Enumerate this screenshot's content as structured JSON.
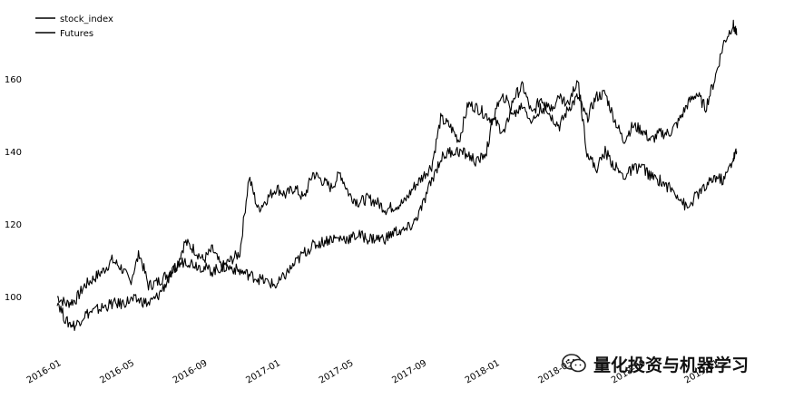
{
  "chart_data": {
    "type": "line",
    "title": "",
    "xlabel": "",
    "ylabel": "",
    "x_ticks": [
      "2016-01",
      "2016-05",
      "2016-09",
      "2017-01",
      "2017-05",
      "2017-09",
      "2018-01",
      "2018-05",
      "2018-09",
      "2019-01"
    ],
    "y_ticks": [
      100,
      120,
      140,
      160
    ],
    "ylim": [
      88,
      178
    ],
    "xlim": [
      0,
      38.5
    ],
    "legend": "top-left",
    "grid": false,
    "series": [
      {
        "name": "stock_index",
        "color": "#000000",
        "x": [
          0,
          0.5,
          1,
          1.5,
          2,
          2.5,
          3,
          3.5,
          4,
          4.5,
          5,
          5.5,
          6,
          6.5,
          7,
          7.5,
          8,
          8.5,
          9,
          9.5,
          10,
          10.5,
          11,
          11.5,
          12,
          12.5,
          13,
          13.5,
          14,
          14.5,
          15,
          15.5,
          16,
          16.5,
          17,
          17.5,
          18,
          18.5,
          19,
          19.5,
          20,
          20.5,
          21,
          21.5,
          22,
          22.5,
          23,
          23.5,
          24,
          24.5,
          25,
          25.5,
          26,
          26.5,
          27,
          27.5,
          28,
          28.5,
          29,
          29.5,
          30,
          30.5,
          31,
          31.5,
          32,
          32.5,
          33,
          33.5,
          34,
          34.5,
          35,
          35.5,
          36,
          36.5,
          37,
          37.2
        ],
        "values": [
          100,
          98,
          99,
          103,
          105,
          107,
          110,
          108,
          104,
          112,
          103,
          104,
          106,
          108,
          115,
          113,
          110,
          113,
          108,
          110,
          112,
          133,
          124,
          127,
          130,
          128,
          130,
          127,
          134,
          132,
          130,
          134,
          128,
          126,
          127,
          126,
          124,
          125,
          126,
          130,
          133,
          136,
          149,
          147,
          143,
          153,
          152,
          150,
          148,
          145,
          155,
          158,
          150,
          155,
          150,
          147,
          152,
          155,
          149,
          155,
          156,
          149,
          143,
          147,
          146,
          143,
          145,
          145,
          148,
          153,
          156,
          152,
          160,
          170,
          175,
          172
        ]
      },
      {
        "name": "Futures",
        "color": "#000000",
        "x": [
          0,
          0.5,
          1,
          1.5,
          2,
          2.5,
          3,
          3.5,
          4,
          4.5,
          5,
          5.5,
          6,
          6.5,
          7,
          7.5,
          8,
          8.5,
          9,
          9.5,
          10,
          10.5,
          11,
          11.5,
          12,
          12.5,
          13,
          13.5,
          14,
          14.5,
          15,
          15.5,
          16,
          16.5,
          17,
          17.5,
          18,
          18.5,
          19,
          19.5,
          20,
          20.5,
          21,
          21.5,
          22,
          22.5,
          23,
          23.5,
          24,
          24.5,
          25,
          25.5,
          26,
          26.5,
          27,
          27.5,
          28,
          28.5,
          29,
          29.5,
          30,
          30.5,
          31,
          31.5,
          32,
          32.5,
          33,
          33.5,
          34,
          34.5,
          35,
          35.5,
          36,
          36.5,
          37,
          37.2
        ],
        "values": [
          99,
          93,
          92,
          95,
          96,
          97,
          98,
          98,
          99,
          99,
          98,
          100,
          104,
          108,
          110,
          109,
          108,
          107,
          108,
          108,
          107,
          106,
          105,
          104,
          103,
          106,
          109,
          112,
          114,
          115,
          116,
          116,
          116,
          117,
          116,
          116,
          116,
          118,
          118,
          120,
          125,
          132,
          138,
          140,
          140,
          139,
          137,
          140,
          152,
          155,
          150,
          153,
          148,
          152,
          152,
          155,
          153,
          160,
          140,
          135,
          140,
          136,
          133,
          135,
          136,
          133,
          132,
          130,
          128,
          124,
          128,
          130,
          133,
          132,
          138,
          140
        ]
      }
    ]
  },
  "watermark": {
    "text": "量化投资与机器学习",
    "icon": "wechat-icon"
  }
}
